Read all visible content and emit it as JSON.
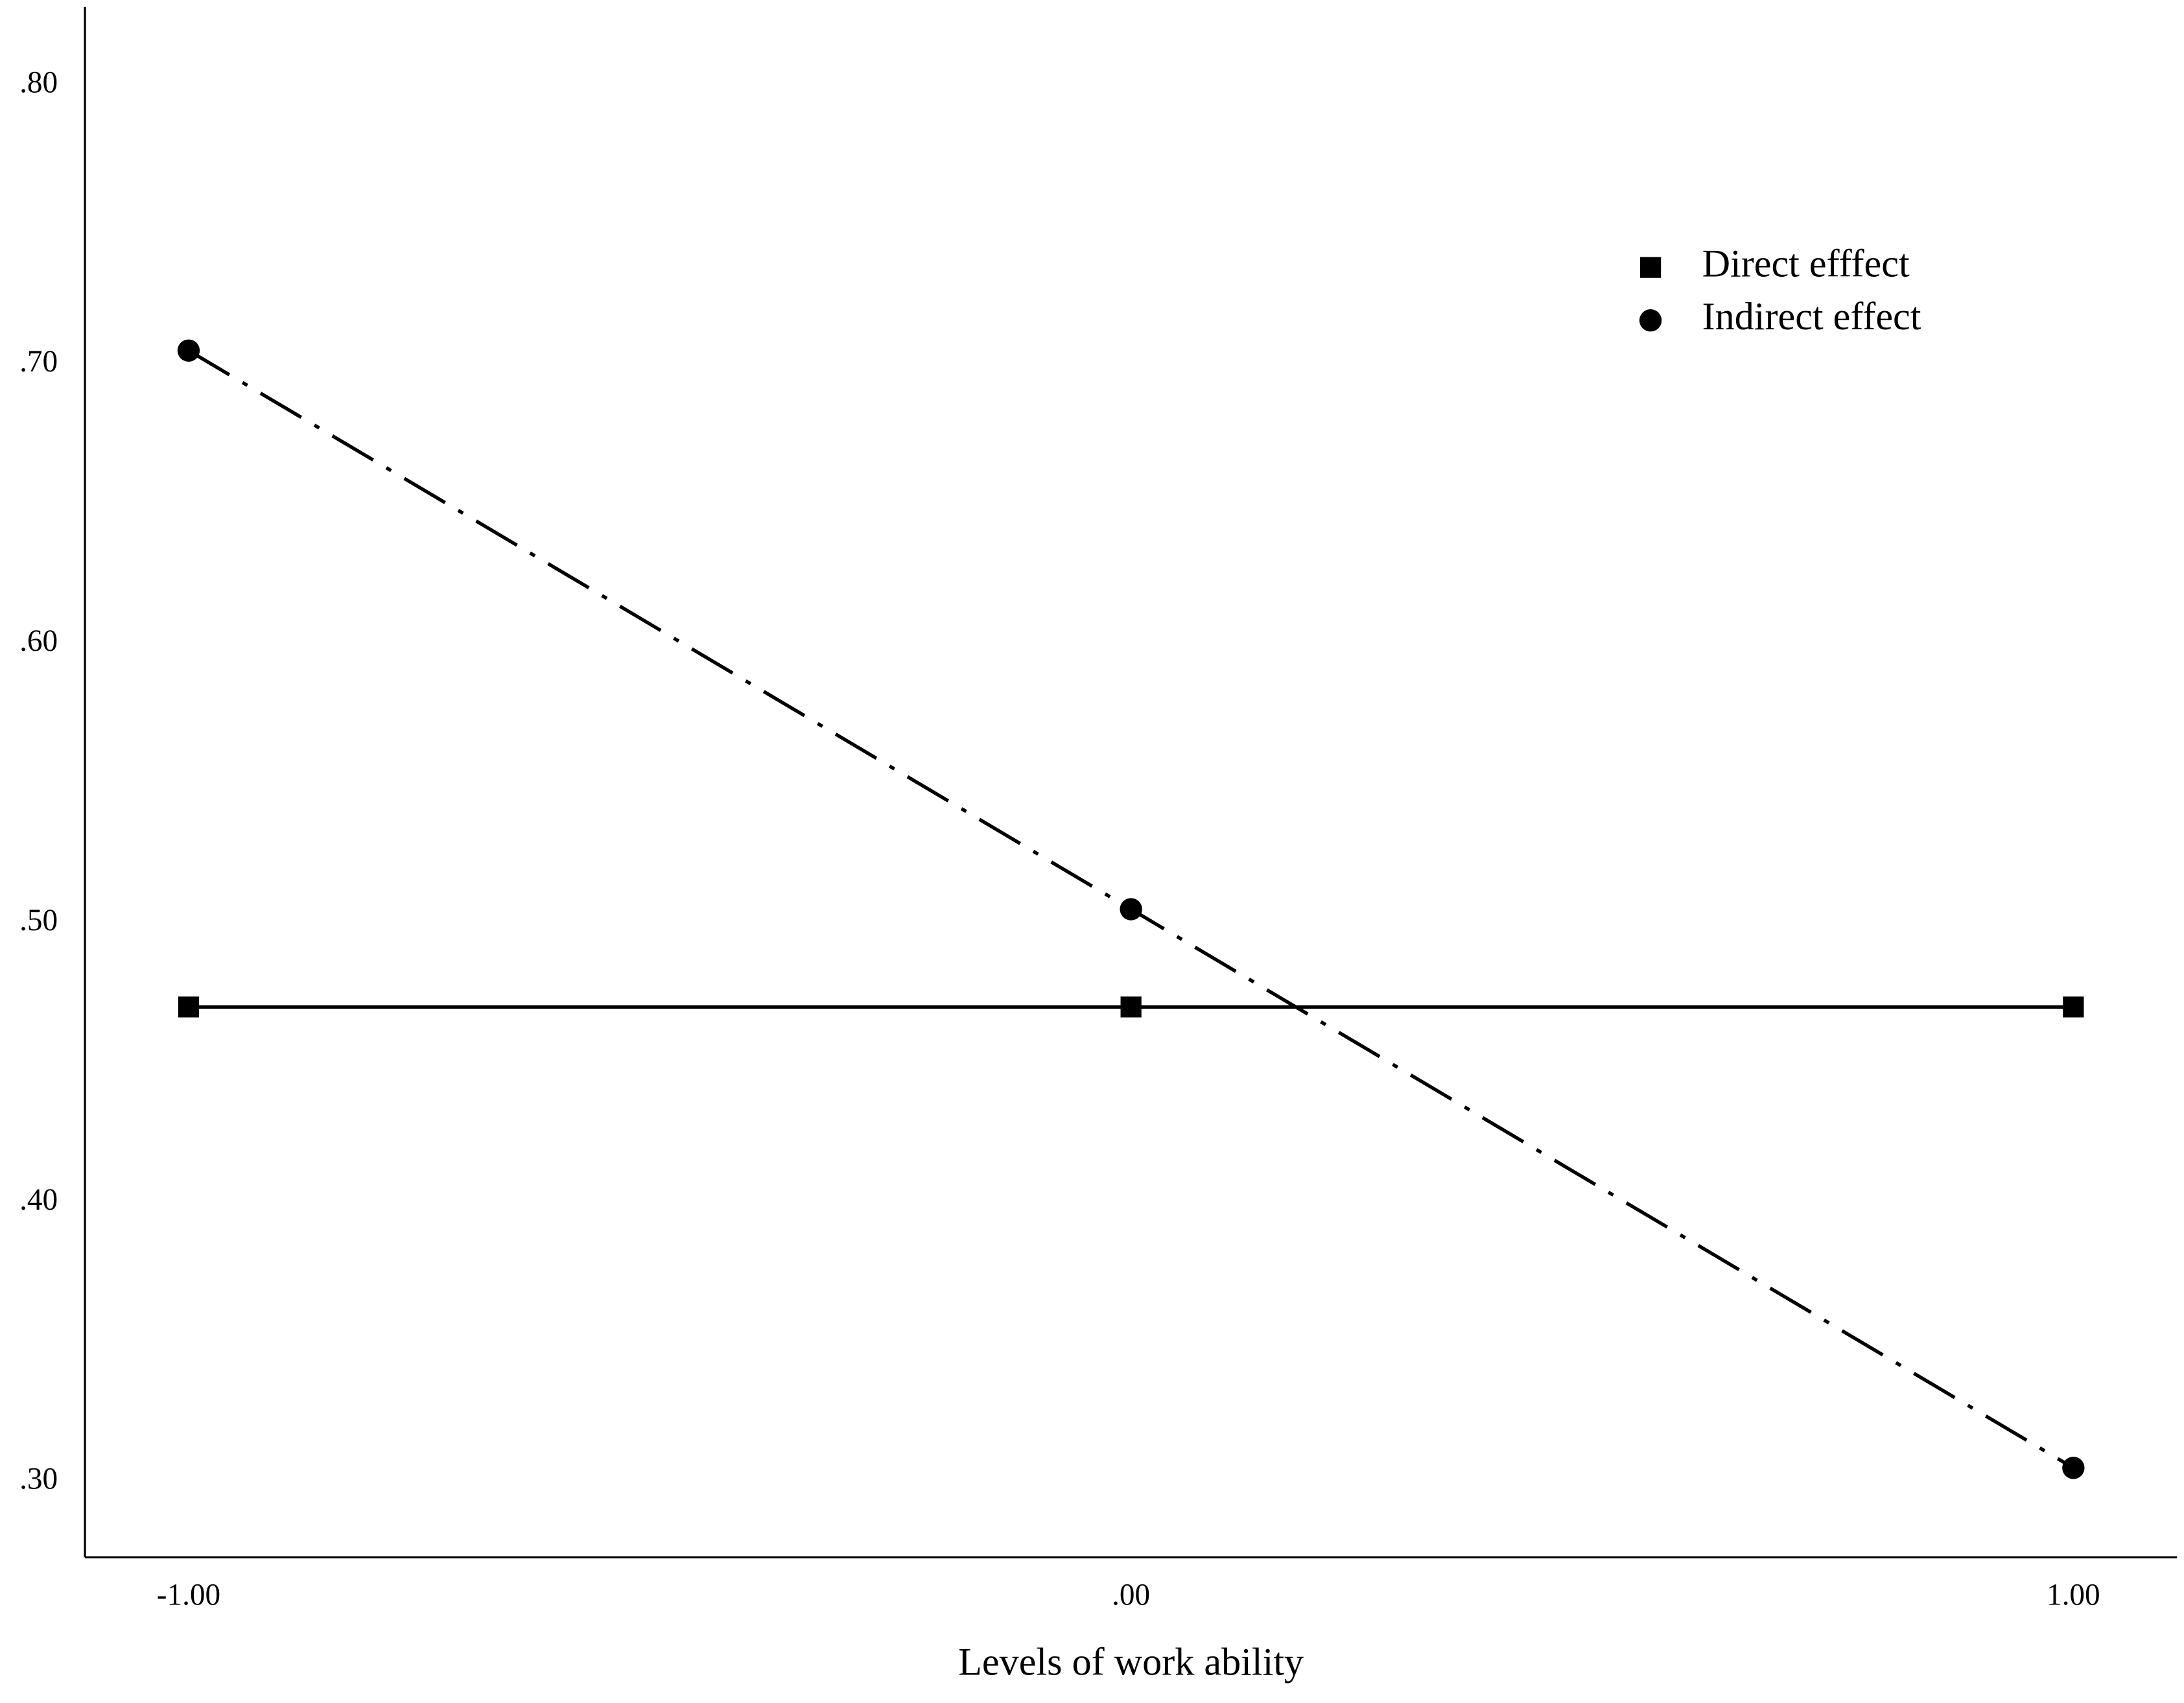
{
  "chart_data": {
    "type": "line",
    "x_label": "Levels of work ability",
    "x": [
      -1,
      0,
      1
    ],
    "xlim": [
      -1.11,
      1.11
    ],
    "xticks": [
      {
        "value": -1,
        "label": "-1.00"
      },
      {
        "value": 0,
        "label": ".00"
      },
      {
        "value": 1,
        "label": "1.00"
      }
    ],
    "ylim": [
      0.273,
      0.828
    ],
    "yticks": [
      {
        "value": 0.3,
        "label": ".30"
      },
      {
        "value": 0.4,
        "label": ".40"
      },
      {
        "value": 0.5,
        "label": ".50"
      },
      {
        "value": 0.6,
        "label": ".60"
      },
      {
        "value": 0.7,
        "label": ".70"
      },
      {
        "value": 0.8,
        "label": ".80"
      }
    ],
    "grid": false,
    "legend": "upper right",
    "series": [
      {
        "name": "Direct efffect",
        "color": "#000000",
        "marker": "square",
        "dash": "solid",
        "values": [
          0.47,
          0.47,
          0.47
        ]
      },
      {
        "name": "Indirect effect",
        "color": "#000000",
        "marker": "circle",
        "dash": "dashdot",
        "values": [
          0.705,
          0.505,
          0.305
        ]
      }
    ]
  }
}
